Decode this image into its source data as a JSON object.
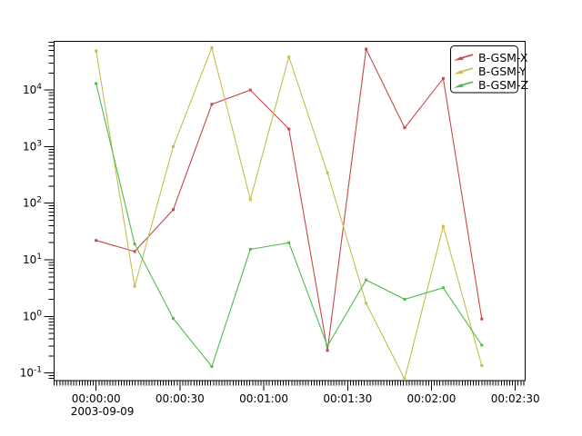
{
  "figure": {
    "background": "#ffffff",
    "border_color": "#000000"
  },
  "chart_data": {
    "type": "line",
    "title": "",
    "xlabel": "",
    "ylabel": "",
    "x_axis": {
      "date_label": "2003-09-09",
      "tick_labels": [
        "00:00:00",
        "00:00:30",
        "00:01:00",
        "00:01:30",
        "00:02:00",
        "00:02:30"
      ],
      "tick_seconds": [
        0,
        30,
        60,
        90,
        120,
        150
      ],
      "minor_tick_step_seconds": 1,
      "range_seconds": [
        -15.2,
        153.7
      ]
    },
    "y_axis": {
      "scale": "log",
      "tick_label_base": "10",
      "tick_exponents": [
        -1,
        0,
        1,
        2,
        3,
        4
      ],
      "range": [
        0.073,
        71000
      ],
      "grid": false
    },
    "x_seconds": [
      0,
      13.8,
      27.6,
      41.4,
      55.2,
      69,
      82.8,
      96.6,
      110.4,
      124.2,
      138
    ],
    "series": [
      {
        "name": "B-GSM-X",
        "color": "#c44a4a",
        "values": [
          22,
          14,
          77,
          5600,
          10000,
          2050,
          0.25,
          53000,
          2150,
          16000,
          0.9
        ]
      },
      {
        "name": "B-GSM-Y",
        "color": "#c6be4e",
        "values": [
          49000,
          3.4,
          1000,
          56000,
          116,
          38500,
          345,
          1.7,
          0.078,
          39,
          0.135
        ]
      },
      {
        "name": "B-GSM-Z",
        "color": "#50bb50",
        "values": [
          13000,
          19,
          0.92,
          0.13,
          15.3,
          20,
          0.3,
          4.4,
          2.0,
          3.2,
          0.31
        ]
      }
    ],
    "legend": {
      "position": "top-right",
      "entries": [
        "B-GSM-X",
        "B-GSM-Y",
        "B-GSM-Z"
      ]
    }
  }
}
